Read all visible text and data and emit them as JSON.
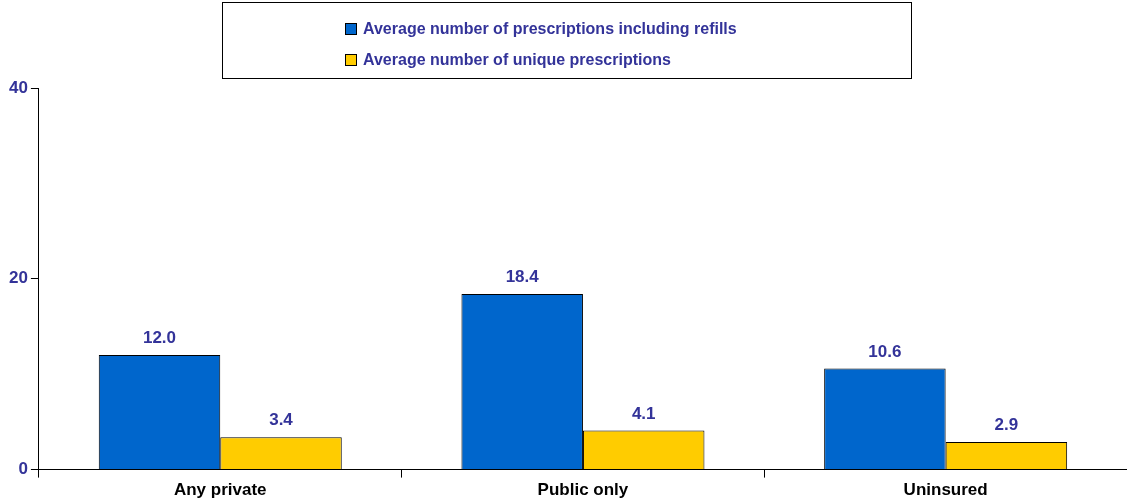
{
  "chart_data": {
    "type": "bar",
    "categories": [
      "Any private",
      "Public only",
      "Uninsured"
    ],
    "series": [
      {
        "name": "Average number of prescriptions including refills",
        "color": "#0066cc",
        "values": [
          12.0,
          18.4,
          10.6
        ],
        "value_labels": [
          "12.0",
          "18.4",
          "10.6"
        ]
      },
      {
        "name": "Average number of unique prescriptions",
        "color": "#ffcc00",
        "values": [
          3.4,
          4.1,
          2.9
        ],
        "value_labels": [
          "3.4",
          "4.1",
          "2.9"
        ]
      }
    ],
    "ylim": [
      0,
      40
    ],
    "yticks": [
      0,
      20,
      40
    ],
    "grid": false,
    "legend": "top"
  }
}
